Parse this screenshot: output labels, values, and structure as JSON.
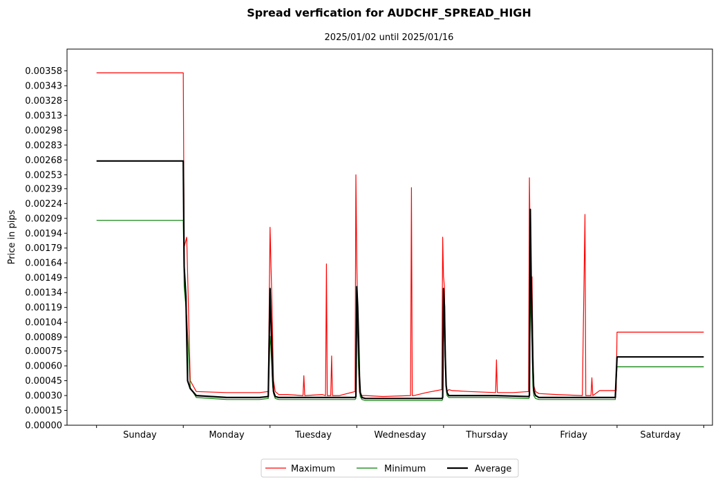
{
  "chart_data": {
    "type": "line",
    "title": "Spread verfication for AUDCHF_SPREAD_HIGH",
    "subtitle": "2025/01/02 until 2025/01/16",
    "xlabel": "",
    "ylabel": "Price in pips",
    "ylim": [
      0,
      0.0038
    ],
    "xlim": [
      -0.34,
      7.1
    ],
    "grid": false,
    "legend_placement": "bottom-center",
    "categories": [
      "Sunday",
      "Monday",
      "Tuesday",
      "Wednesday",
      "Thursday",
      "Friday",
      "Saturday"
    ],
    "y_ticks": [
      "0.00000",
      "0.00015",
      "0.00030",
      "0.00045",
      "0.00060",
      "0.00075",
      "0.00089",
      "0.00104",
      "0.00119",
      "0.00134",
      "0.00149",
      "0.00164",
      "0.00179",
      "0.00194",
      "0.00209",
      "0.00224",
      "0.00239",
      "0.00253",
      "0.00268",
      "0.00283",
      "0.00298",
      "0.00313",
      "0.00328",
      "0.00343",
      "0.00358"
    ],
    "series": [
      {
        "name": "Maximum",
        "color": "#ff0000",
        "width": 1.2,
        "x": [
          0,
          1,
          1.01,
          1.04,
          1.08,
          1.15,
          1.5,
          1.88,
          1.98,
          2.0,
          2.01,
          2.02,
          2.03,
          2.04,
          2.06,
          2.1,
          2.2,
          2.38,
          2.39,
          2.4,
          2.6,
          2.64,
          2.65,
          2.66,
          2.7,
          2.71,
          2.72,
          2.8,
          2.98,
          2.99,
          3.0,
          3.01,
          3.02,
          3.03,
          3.04,
          3.06,
          3.1,
          3.3,
          3.62,
          3.63,
          3.64,
          3.66,
          3.8,
          3.98,
          3.99,
          4.0,
          4.01,
          4.02,
          4.03,
          4.04,
          4.06,
          4.1,
          4.3,
          4.6,
          4.61,
          4.62,
          4.8,
          4.98,
          4.99,
          5.0,
          5.01,
          5.02,
          5.03,
          5.04,
          5.06,
          5.1,
          5.3,
          5.6,
          5.63,
          5.64,
          5.65,
          5.7,
          5.71,
          5.72,
          5.8,
          5.98,
          5.99,
          6.0,
          7.0
        ],
        "y": [
          0.00356,
          0.00356,
          0.0018,
          0.0019,
          0.00045,
          0.00034,
          0.00033,
          0.00033,
          0.00034,
          0.002,
          0.00165,
          0.0013,
          0.0009,
          0.00045,
          0.00034,
          0.00031,
          0.00031,
          0.0003,
          0.0005,
          0.0003,
          0.00031,
          0.0003,
          0.00163,
          0.0003,
          0.0003,
          0.0007,
          0.0003,
          0.0003,
          0.00034,
          0.00253,
          0.00165,
          0.0011,
          0.0006,
          0.00034,
          0.0003,
          0.0003,
          0.0003,
          0.00029,
          0.0003,
          0.0024,
          0.0003,
          0.0003,
          0.00033,
          0.00036,
          0.0019,
          0.0015,
          0.0014,
          0.0008,
          0.0004,
          0.00034,
          0.00036,
          0.00035,
          0.00034,
          0.00033,
          0.00066,
          0.00033,
          0.00033,
          0.00034,
          0.0025,
          0.0017,
          0.0011,
          0.0015,
          0.0008,
          0.0004,
          0.00034,
          0.00032,
          0.00031,
          0.0003,
          0.00213,
          0.0003,
          0.0003,
          0.0003,
          0.00048,
          0.0003,
          0.00035,
          0.00035,
          0.00035,
          0.00094,
          0.00094
        ]
      },
      {
        "name": "Minimum",
        "color": "#008000",
        "width": 1.2,
        "x": [
          0,
          1,
          1.01,
          1.04,
          1.08,
          1.15,
          1.5,
          1.88,
          1.98,
          2.0,
          2.01,
          2.02,
          2.03,
          2.04,
          2.06,
          2.1,
          2.5,
          2.98,
          2.99,
          3.0,
          3.01,
          3.02,
          3.03,
          3.04,
          3.06,
          3.1,
          3.6,
          3.98,
          3.99,
          4.0,
          4.01,
          4.02,
          4.03,
          4.04,
          4.06,
          4.1,
          4.6,
          4.98,
          4.99,
          5.0,
          5.01,
          5.02,
          5.03,
          5.04,
          5.06,
          5.1,
          5.6,
          5.98,
          5.99,
          6.0,
          7.0
        ],
        "y": [
          0.00207,
          0.00207,
          0.0014,
          0.0011,
          0.00038,
          0.00028,
          0.00026,
          0.00026,
          0.00027,
          0.0009,
          0.0008,
          0.0006,
          0.0004,
          0.00032,
          0.00027,
          0.00026,
          0.00026,
          0.00026,
          0.00027,
          0.0011,
          0.0009,
          0.0006,
          0.0004,
          0.00029,
          0.00026,
          0.00025,
          0.00025,
          0.00025,
          0.00026,
          0.0011,
          0.001,
          0.0006,
          0.0004,
          0.0003,
          0.00028,
          0.00028,
          0.00028,
          0.00027,
          0.00028,
          0.0013,
          0.0011,
          0.0008,
          0.0004,
          0.0003,
          0.00027,
          0.00026,
          0.00026,
          0.00026,
          0.00045,
          0.00059,
          0.00059
        ]
      },
      {
        "name": "Average",
        "color": "#000000",
        "width": 2.2,
        "x": [
          0,
          1,
          1.01,
          1.03,
          1.05,
          1.08,
          1.15,
          1.5,
          1.88,
          1.98,
          2.0,
          2.01,
          2.02,
          2.03,
          2.04,
          2.06,
          2.1,
          2.5,
          2.98,
          2.99,
          3.0,
          3.01,
          3.02,
          3.03,
          3.04,
          3.06,
          3.1,
          3.6,
          3.98,
          3.99,
          4.0,
          4.01,
          4.02,
          4.03,
          4.04,
          4.06,
          4.1,
          4.6,
          4.98,
          4.99,
          5.0,
          5.01,
          5.02,
          5.03,
          5.04,
          5.06,
          5.1,
          5.6,
          5.98,
          5.99,
          6.0,
          7.0
        ],
        "y": [
          0.00267,
          0.00267,
          0.0016,
          0.0013,
          0.00045,
          0.00037,
          0.0003,
          0.00028,
          0.00028,
          0.00029,
          0.00138,
          0.0011,
          0.0008,
          0.0005,
          0.00034,
          0.00029,
          0.00028,
          0.00028,
          0.00028,
          0.00029,
          0.0014,
          0.0012,
          0.0009,
          0.0005,
          0.00033,
          0.00028,
          0.00027,
          0.00027,
          0.00027,
          0.00028,
          0.00138,
          0.0012,
          0.0007,
          0.0004,
          0.00033,
          0.0003,
          0.0003,
          0.0003,
          0.00029,
          0.0003,
          0.00218,
          0.0015,
          0.0011,
          0.0006,
          0.00035,
          0.0003,
          0.00028,
          0.00028,
          0.00028,
          0.0005,
          0.00069,
          0.00069
        ]
      }
    ]
  }
}
